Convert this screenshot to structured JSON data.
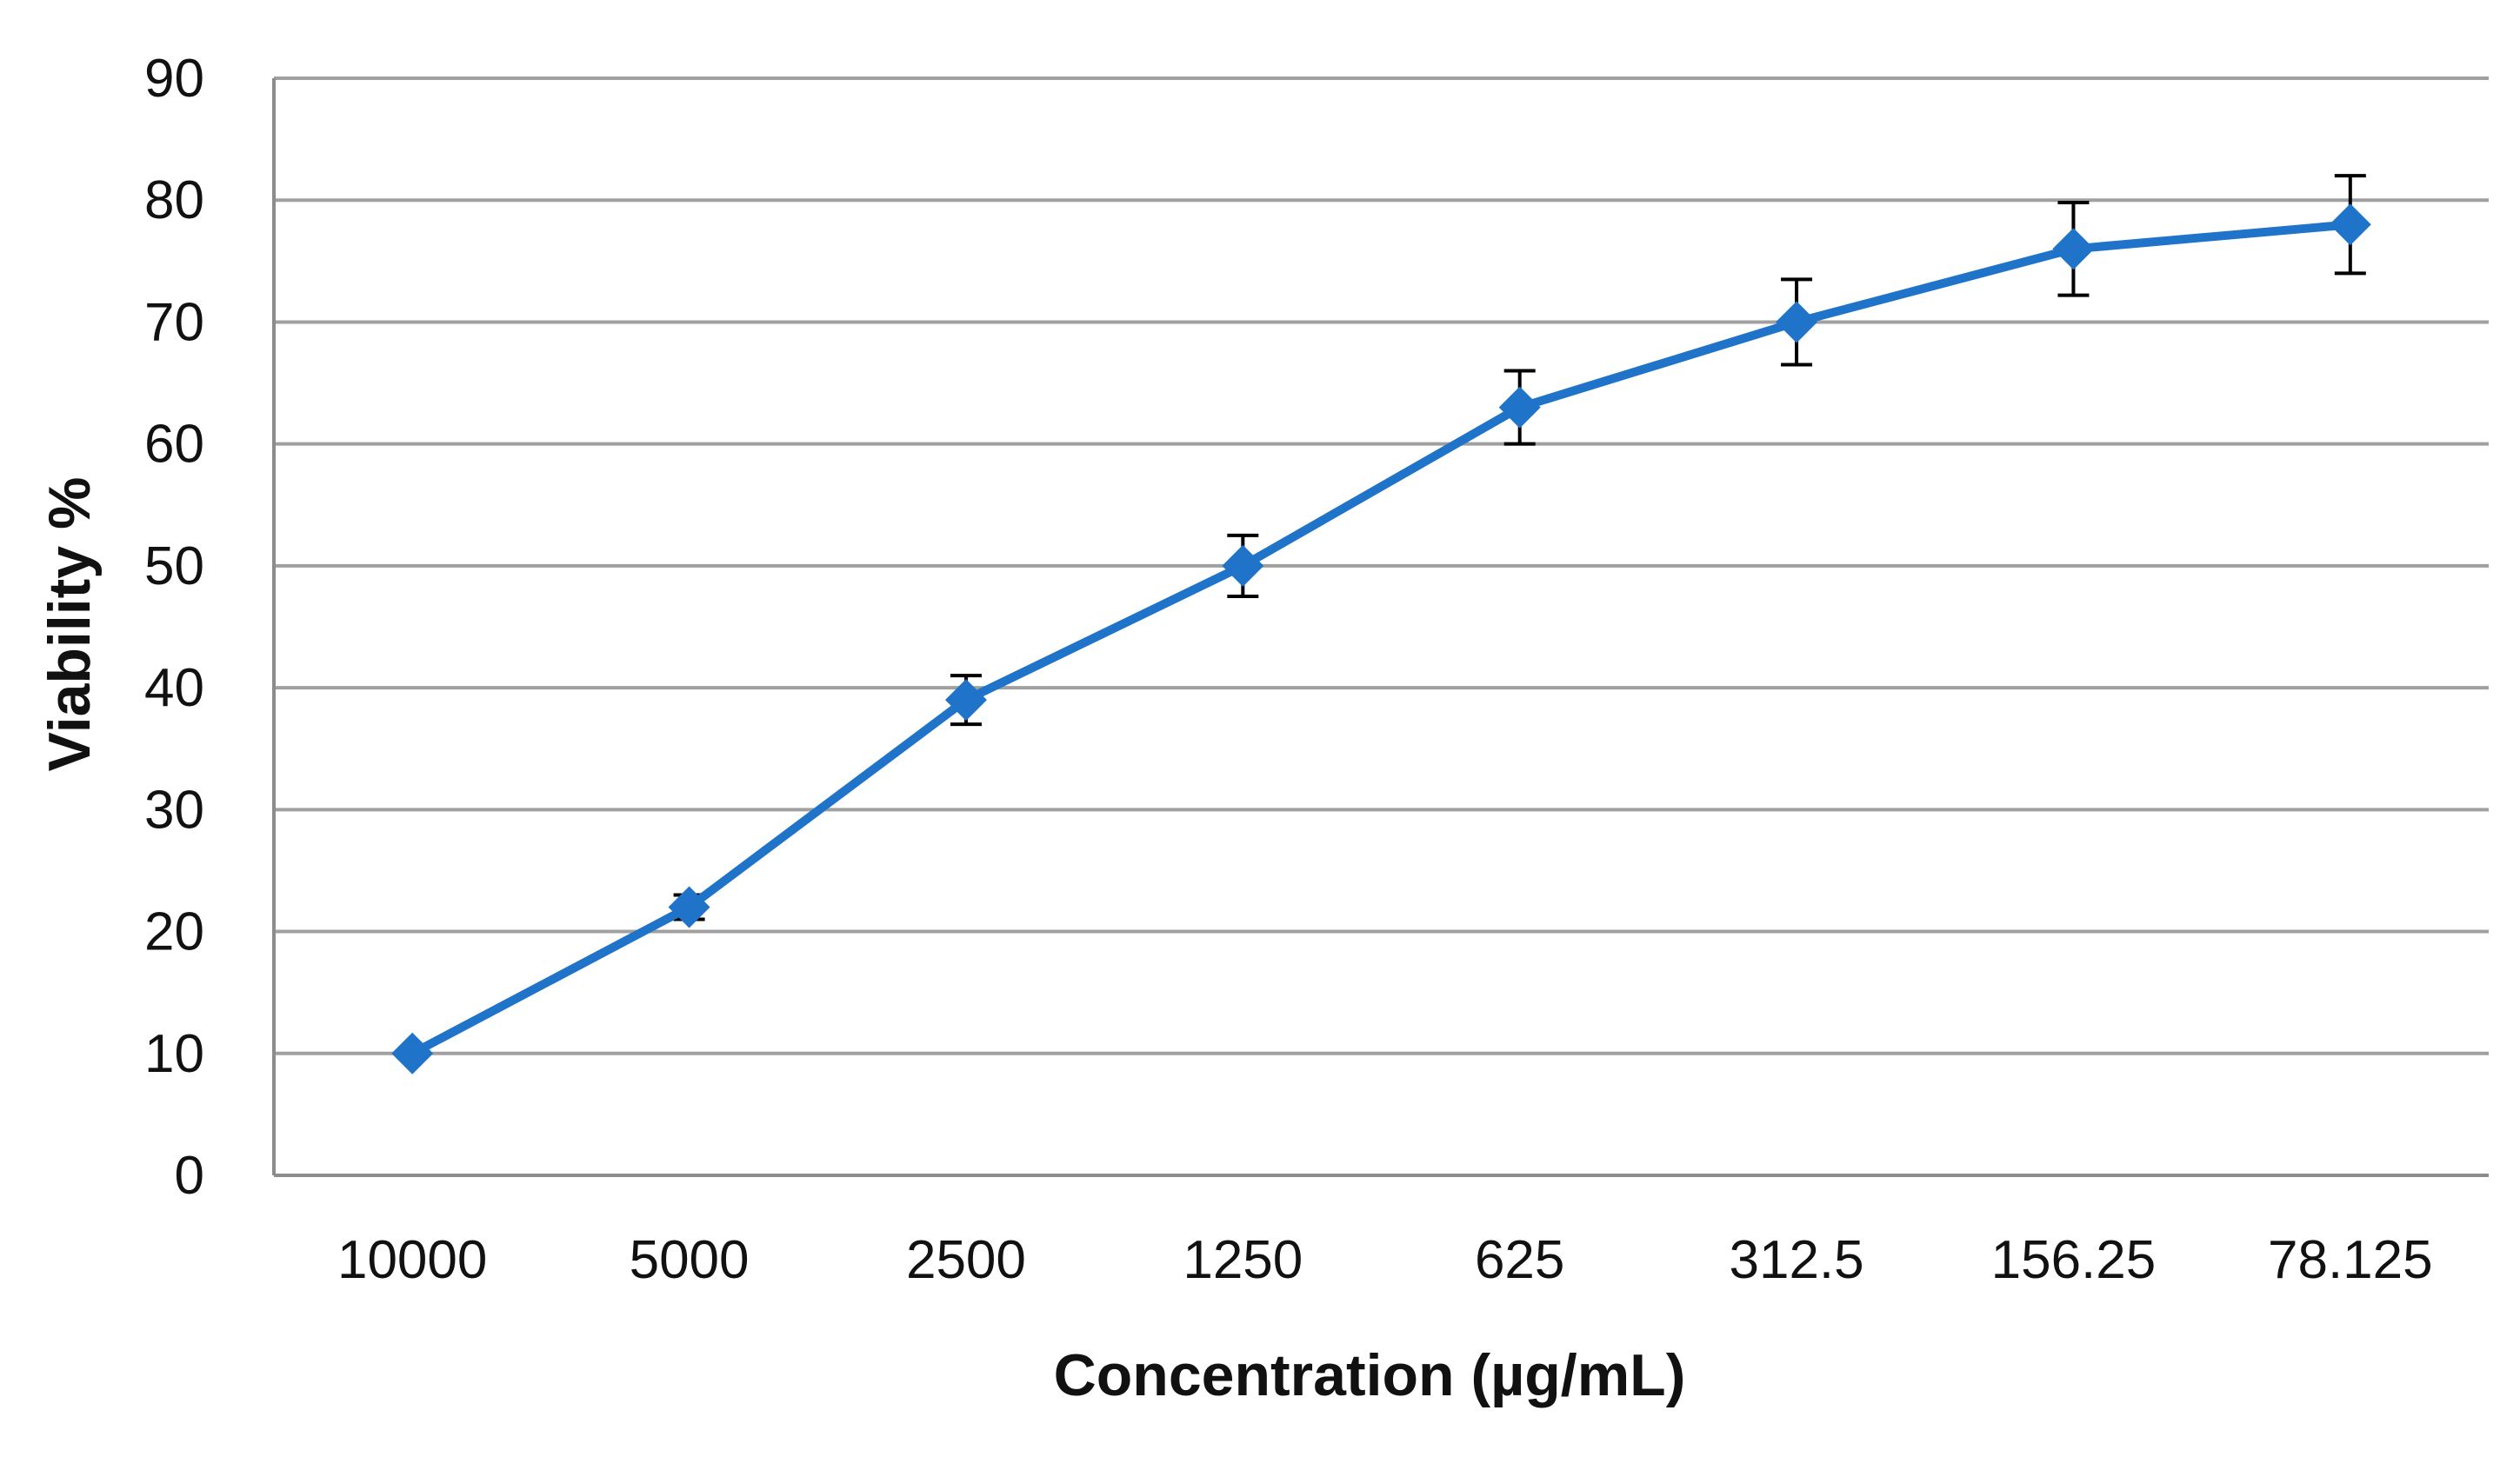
{
  "chart_data": {
    "type": "line",
    "title": "",
    "xlabel": "Concentration (µg/mL)",
    "ylabel": "Viability %",
    "categories": [
      "10000",
      "5000",
      "2500",
      "1250",
      "625",
      "312.5",
      "156.25",
      "78.125"
    ],
    "series": [
      {
        "name": "Viability",
        "values": [
          10,
          22,
          39,
          50,
          63,
          70,
          76,
          78
        ],
        "errors": [
          0,
          1,
          2,
          2.5,
          3,
          3.5,
          3.8,
          4
        ],
        "color": "#1f74c9",
        "marker": "diamond"
      }
    ],
    "ylim": [
      0,
      90
    ],
    "yticks": [
      0,
      10,
      20,
      30,
      40,
      50,
      60,
      70,
      80,
      90
    ],
    "grid": true,
    "legend": "none"
  }
}
